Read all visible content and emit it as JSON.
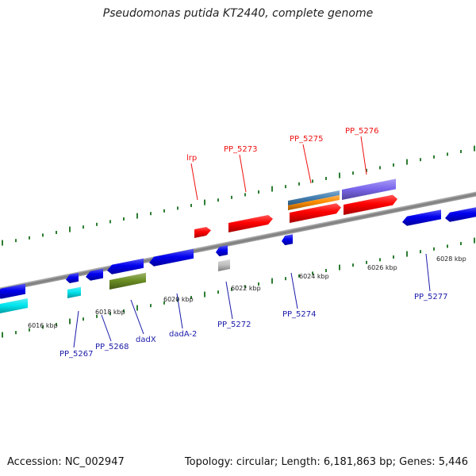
{
  "header": {
    "title": "Pseudomonas putida KT2440, complete genome"
  },
  "footer": {
    "accession": "Accession: NC_002947",
    "summary": "Topology: circular; Length: 6,181,863 bp; Genes: 5,446"
  },
  "colors": {
    "forward": "#ff0000",
    "reverse": "#0000ee",
    "backbone": "#8c8c8c",
    "tick": "#2e7d32",
    "cyan": "#00e5ee",
    "olive": "#6b8e23",
    "steel": "#4682b4",
    "orange": "#ff8c00",
    "purple": "#7b68ee",
    "gray": "#c0c0c0"
  },
  "scale_labels": [
    "6016 kbp",
    "6018 kbp",
    "6020 kbp",
    "6022 kbp",
    "6024 kbp",
    "6026 kbp",
    "6028 kbp"
  ],
  "gene_labels_top": [
    "lrp",
    "PP_5273",
    "PP_5275",
    "PP_5276"
  ],
  "gene_labels_bottom": [
    "PP_5267",
    "PP_5268",
    "dadX",
    "dadA-2",
    "PP_5272",
    "PP_5274",
    "PP_5277"
  ]
}
